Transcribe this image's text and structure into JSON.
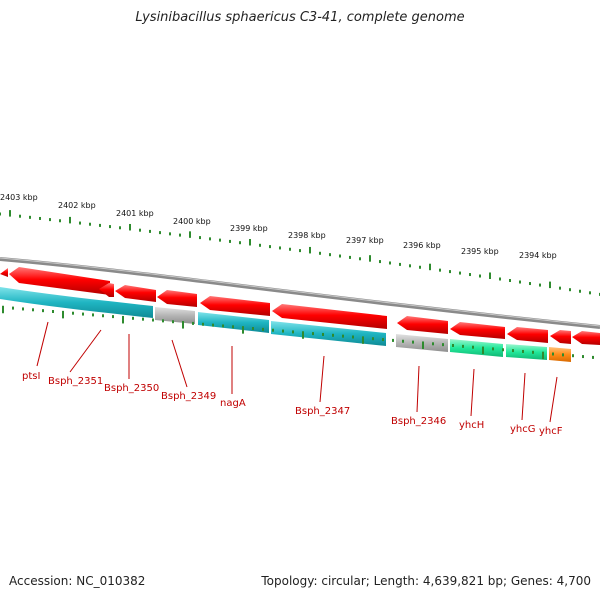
{
  "title": "Lysinibacillus sphaericus C3-41, complete genome",
  "footer": {
    "accession": "Accession: NC_010382",
    "topology": "Topology: circular; Length: 4,639,821 bp; Genes: 4,700"
  },
  "scale_labels": [
    "2403 kbp",
    "2402 kbp",
    "2401 kbp",
    "2400 kbp",
    "2399 kbp",
    "2398 kbp",
    "2397 kbp",
    "2396 kbp",
    "2395 kbp",
    "2394 kbp"
  ],
  "gene_labels": [
    "ptsI",
    "Bsph_2351",
    "Bsph_2350",
    "Bsph_2349",
    "nagA",
    "Bsph_2347",
    "Bsph_2346",
    "yhcH",
    "yhcG",
    "yhcF"
  ],
  "colors": {
    "cds": "#ff0000",
    "backbone": "#888888",
    "cog_teal": "#1fb5c2",
    "cog_grey": "#b5b5b5",
    "cog_green": "#22e89a",
    "cog_orange": "#ff8c1a",
    "ticks": "#2e8b2e",
    "label": "#c00000"
  }
}
